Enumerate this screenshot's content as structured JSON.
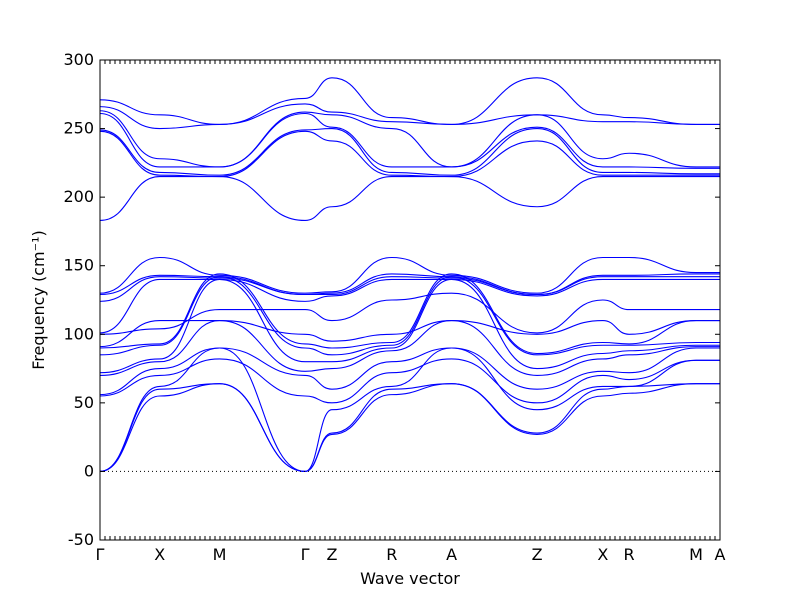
{
  "chart_data": {
    "type": "line",
    "xlabel": "Wave vector",
    "ylabel": "Frequency (cm⁻¹)",
    "ylim": [
      -50,
      300
    ],
    "yticks": [
      -50,
      0,
      50,
      100,
      150,
      200,
      250,
      300
    ],
    "xlim": [
      0,
      10.37
    ],
    "path": [
      {
        "label": "Γ",
        "x": 0
      },
      {
        "label": "X",
        "x": 1.0
      },
      {
        "label": "M",
        "x": 2.0
      },
      {
        "label": "Γ",
        "x": 3.43
      },
      {
        "label": "Z",
        "x": 3.88
      },
      {
        "label": "R",
        "x": 4.88
      },
      {
        "label": "A",
        "x": 5.88
      },
      {
        "label": "Z",
        "x": 7.31
      },
      {
        "label": "X",
        "x": 8.41
      },
      {
        "label": "R",
        "x": 8.85
      },
      {
        "label": "M",
        "x": 9.97
      },
      {
        "label": "A",
        "x": 10.37
      }
    ],
    "zero_line": true,
    "color": "#0000ff",
    "series": [
      {
        "x": [
          0,
          1,
          2,
          3.43,
          3.88,
          4.88,
          5.88,
          7.31,
          8.41,
          8.85,
          9.97,
          10.37
        ],
        "y": [
          0,
          55,
          64,
          0,
          27,
          56,
          64,
          27,
          55,
          57,
          64,
          64
        ]
      },
      {
        "x": [
          0,
          1,
          2,
          3.43,
          3.88,
          4.88,
          5.88,
          7.31,
          8.41,
          8.85,
          9.97,
          10.37
        ],
        "y": [
          0,
          60,
          64,
          0,
          28,
          60,
          64,
          28,
          60,
          62,
          64,
          64
        ]
      },
      {
        "x": [
          0,
          1,
          2,
          3.43,
          3.88,
          4.88,
          5.88,
          7.31,
          8.41,
          8.85,
          9.97,
          10.37
        ],
        "y": [
          0,
          62,
          90,
          0,
          45,
          62,
          90,
          45,
          62,
          62,
          81,
          81
        ]
      },
      {
        "x": [
          0,
          1,
          2,
          3.43,
          3.88,
          4.88,
          5.88,
          7.31,
          8.41,
          8.85,
          9.97,
          10.37
        ],
        "y": [
          55,
          70,
          82,
          55,
          50,
          72,
          82,
          50,
          70,
          67,
          81,
          81
        ]
      },
      {
        "x": [
          0,
          1,
          2,
          3.43,
          3.88,
          4.88,
          5.88,
          7.31,
          8.41,
          8.85,
          9.97,
          10.37
        ],
        "y": [
          56,
          75,
          90,
          70,
          60,
          80,
          90,
          60,
          73,
          72,
          90,
          90
        ]
      },
      {
        "x": [
          0,
          1,
          2,
          3.43,
          3.88,
          4.88,
          5.88,
          7.31,
          8.41,
          8.85,
          9.97,
          10.37
        ],
        "y": [
          70,
          80,
          110,
          73,
          75,
          88,
          110,
          70,
          82,
          85,
          91,
          91
        ]
      },
      {
        "x": [
          0,
          1,
          2,
          3.43,
          3.88,
          4.88,
          5.88,
          7.31,
          8.41,
          8.85,
          9.97,
          10.37
        ],
        "y": [
          72,
          82,
          140,
          80,
          80,
          90,
          140,
          75,
          86,
          88,
          92,
          92
        ]
      },
      {
        "x": [
          0,
          1,
          2,
          3.43,
          3.88,
          4.88,
          5.88,
          7.31,
          8.41,
          8.85,
          9.97,
          10.37
        ],
        "y": [
          85,
          92,
          142,
          90,
          85,
          92,
          142,
          85,
          92,
          92,
          94,
          94
        ]
      },
      {
        "x": [
          0,
          1,
          2,
          3.43,
          3.88,
          4.88,
          5.88,
          7.31,
          8.41,
          8.85,
          9.97,
          10.37
        ],
        "y": [
          90,
          93,
          144,
          93,
          90,
          94,
          144,
          86,
          94,
          93,
          110,
          110
        ]
      },
      {
        "x": [
          0,
          1,
          2,
          3.43,
          3.88,
          4.88,
          5.88,
          7.31,
          8.41,
          8.85,
          9.97,
          10.37
        ],
        "y": [
          91,
          110,
          110,
          100,
          95,
          100,
          110,
          100,
          110,
          100,
          110,
          110
        ]
      },
      {
        "x": [
          0,
          1,
          2,
          3.43,
          3.88,
          4.88,
          5.88,
          7.31,
          8.41,
          8.85,
          9.97,
          10.37
        ],
        "y": [
          100,
          104,
          118,
          118,
          110,
          125,
          130,
          101,
          125,
          118,
          118,
          118
        ]
      },
      {
        "x": [
          0,
          1,
          2,
          3.43,
          3.88,
          4.88,
          5.88,
          7.31,
          8.41,
          8.85,
          9.97,
          10.37
        ],
        "y": [
          101,
          140,
          140,
          124,
          128,
          140,
          140,
          128,
          140,
          140,
          140,
          140
        ]
      },
      {
        "x": [
          0,
          1,
          2,
          3.43,
          3.88,
          4.88,
          5.88,
          7.31,
          8.41,
          8.85,
          9.97,
          10.37
        ],
        "y": [
          124,
          142,
          141,
          129,
          129,
          142,
          141,
          129,
          142,
          142,
          142,
          142
        ]
      },
      {
        "x": [
          0,
          1,
          2,
          3.43,
          3.88,
          4.88,
          5.88,
          7.31,
          8.41,
          8.85,
          9.97,
          10.37
        ],
        "y": [
          129,
          143,
          142,
          129,
          130,
          144,
          142,
          129,
          143,
          143,
          144,
          144
        ]
      },
      {
        "x": [
          0,
          1,
          2,
          3.43,
          3.88,
          4.88,
          5.88,
          7.31,
          8.41,
          8.85,
          9.97,
          10.37
        ],
        "y": [
          130,
          156,
          143,
          130,
          131,
          156,
          143,
          130,
          156,
          156,
          145,
          145
        ]
      },
      {
        "x": [
          0,
          1,
          2,
          3.43,
          3.88,
          4.88,
          5.88,
          7.31,
          8.41,
          8.85,
          9.97,
          10.37
        ],
        "y": [
          183,
          215,
          215,
          183,
          193,
          215,
          215,
          193,
          215,
          215,
          215,
          215
        ]
      },
      {
        "x": [
          0,
          1,
          2,
          3.43,
          3.88,
          4.88,
          5.88,
          7.31,
          8.41,
          8.85,
          9.97,
          10.37
        ],
        "y": [
          248,
          216,
          215,
          248,
          241,
          216,
          215,
          241,
          216,
          216,
          216,
          216
        ]
      },
      {
        "x": [
          0,
          1,
          2,
          3.43,
          3.88,
          4.88,
          5.88,
          7.31,
          8.41,
          8.85,
          9.97,
          10.37
        ],
        "y": [
          249,
          218,
          216,
          249,
          250,
          218,
          216,
          250,
          218,
          218,
          217,
          217
        ]
      },
      {
        "x": [
          0,
          1,
          2,
          3.43,
          3.88,
          4.88,
          5.88,
          7.31,
          8.41,
          8.85,
          9.97,
          10.37
        ],
        "y": [
          261,
          222,
          222,
          261,
          251,
          222,
          222,
          251,
          222,
          222,
          221,
          221
        ]
      },
      {
        "x": [
          0,
          1,
          2,
          3.43,
          3.88,
          4.88,
          5.88,
          7.31,
          8.41,
          8.85,
          9.97,
          10.37
        ],
        "y": [
          263,
          228,
          222,
          262,
          260,
          250,
          222,
          260,
          228,
          232,
          222,
          222
        ]
      },
      {
        "x": [
          0,
          1,
          2,
          3.43,
          3.88,
          4.88,
          5.88,
          7.31,
          8.41,
          8.85,
          9.97,
          10.37
        ],
        "y": [
          266,
          250,
          253,
          268,
          262,
          255,
          253,
          260,
          255,
          255,
          253,
          253
        ]
      },
      {
        "x": [
          0,
          1,
          2,
          3.43,
          3.88,
          4.88,
          5.88,
          7.31,
          8.41,
          8.85,
          9.97,
          10.37
        ],
        "y": [
          271,
          260,
          253,
          272,
          287,
          258,
          253,
          287,
          260,
          258,
          253,
          253
        ]
      }
    ]
  }
}
